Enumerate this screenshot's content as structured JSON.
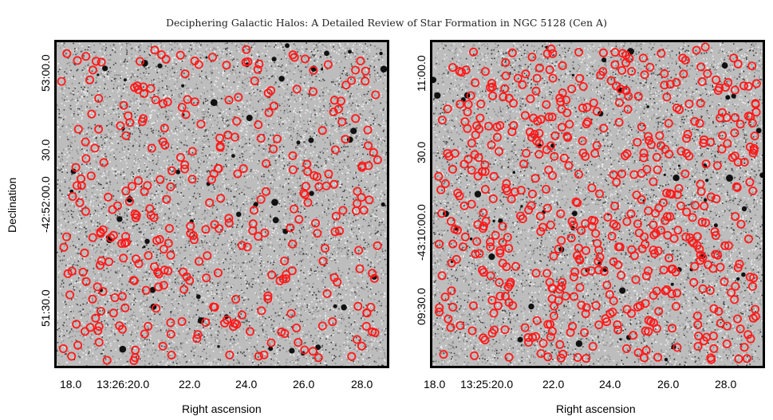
{
  "caption": "Deciphering Galactic Halos: A Detailed Review of Star Formation in NGC 5128 (Cen A)",
  "y_axis_label": "Declination",
  "panels": [
    {
      "x_label": "Right ascension",
      "x_ticks": [
        "18.0",
        "13:26:20.0",
        "22.0",
        "24.0",
        "26.0",
        "28.0"
      ],
      "y_ticks": [
        "53:00.0",
        "30.0",
        "-42:52:00.0",
        "51:30.0"
      ]
    },
    {
      "x_label": "Right ascension",
      "x_ticks": [
        "18.0",
        "13:25:20.0",
        "22.0",
        "24.0",
        "26.0",
        "28.0"
      ],
      "y_ticks": [
        "11:00.0",
        "30.0",
        "-43:10:00.0",
        "09:30.0"
      ]
    }
  ],
  "colors": {
    "marker": "#ff1a1a",
    "frame": "#000000",
    "sky_background": "#bdbdbd"
  }
}
